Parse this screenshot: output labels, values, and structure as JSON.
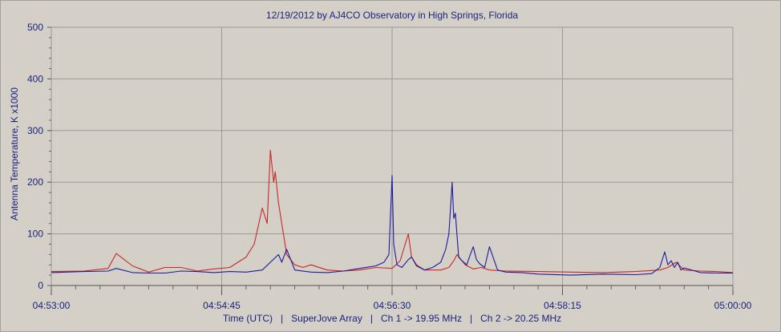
{
  "chart_data": {
    "type": "line",
    "title": "12/19/2012  by  AJ4CO Observatory  in  High Springs, Florida",
    "ylabel": "Antenna Temperature, K x1000",
    "xlabel": "Time (UTC)   |   SuperJove Array   |   Ch 1 -> 19.95 MHz   |   Ch 2 -> 20.25 MHz",
    "x_ticks": [
      "04:53:00",
      "04:54:45",
      "04:56:30",
      "04:58:15",
      "05:00:00"
    ],
    "xlim": [
      "04:53:00",
      "05:00:00"
    ],
    "y_ticks": [
      0,
      100,
      200,
      300,
      400,
      500
    ],
    "ylim": [
      0,
      500
    ],
    "grid": true,
    "colors": {
      "ch1": "#1c1c9e",
      "ch2": "#c82828",
      "background": "#d4d0c8",
      "grid": "#9a9a9a",
      "text": "#1a237e"
    },
    "series": [
      {
        "name": "Ch 1 -> 19.95 MHz",
        "x": [
          "04:53:00",
          "04:53:20",
          "04:53:35",
          "04:53:40",
          "04:53:50",
          "04:54:00",
          "04:54:10",
          "04:54:20",
          "04:54:30",
          "04:54:40",
          "04:54:50",
          "04:55:00",
          "04:55:10",
          "04:55:20",
          "04:55:22",
          "04:55:25",
          "04:55:30",
          "04:55:40",
          "04:55:50",
          "04:56:00",
          "04:56:10",
          "04:56:20",
          "04:56:25",
          "04:56:28",
          "04:56:30",
          "04:56:31",
          "04:56:33",
          "04:56:36",
          "04:56:40",
          "04:56:42",
          "04:56:45",
          "04:56:50",
          "04:56:55",
          "04:57:00",
          "04:57:03",
          "04:57:05",
          "04:57:07",
          "04:57:08",
          "04:57:09",
          "04:57:11",
          "04:57:13",
          "04:57:16",
          "04:57:18",
          "04:57:20",
          "04:57:22",
          "04:57:24",
          "04:57:27",
          "04:57:30",
          "04:57:35",
          "04:57:40",
          "04:57:50",
          "04:58:00",
          "04:58:20",
          "04:58:40",
          "04:59:00",
          "04:59:10",
          "04:59:15",
          "04:59:18",
          "04:59:20",
          "04:59:22",
          "04:59:24",
          "04:59:26",
          "04:59:28",
          "04:59:30",
          "04:59:40",
          "04:59:50",
          "05:00:00"
        ],
        "values": [
          25,
          27,
          28,
          33,
          25,
          24,
          24,
          28,
          27,
          25,
          27,
          26,
          30,
          60,
          45,
          70,
          30,
          26,
          25,
          28,
          33,
          38,
          45,
          60,
          213,
          80,
          40,
          35,
          50,
          55,
          38,
          30,
          35,
          45,
          70,
          100,
          200,
          130,
          140,
          55,
          48,
          40,
          58,
          75,
          50,
          42,
          35,
          75,
          30,
          26,
          25,
          22,
          20,
          22,
          21,
          23,
          35,
          65,
          40,
          48,
          35,
          45,
          30,
          34,
          25,
          24,
          24
        ]
      },
      {
        "name": "Ch 2 -> 20.25 MHz",
        "x": [
          "04:53:00",
          "04:53:20",
          "04:53:35",
          "04:53:40",
          "04:53:45",
          "04:53:50",
          "04:54:00",
          "04:54:10",
          "04:54:20",
          "04:54:30",
          "04:54:40",
          "04:54:50",
          "04:55:00",
          "04:55:05",
          "04:55:10",
          "04:55:13",
          "04:55:15",
          "04:55:17",
          "04:55:18",
          "04:55:20",
          "04:55:22",
          "04:55:25",
          "04:55:30",
          "04:55:35",
          "04:55:40",
          "04:55:50",
          "04:56:00",
          "04:56:10",
          "04:56:20",
          "04:56:30",
          "04:56:35",
          "04:56:40",
          "04:56:42",
          "04:56:45",
          "04:56:50",
          "04:57:00",
          "04:57:05",
          "04:57:08",
          "04:57:10",
          "04:57:15",
          "04:57:20",
          "04:57:25",
          "04:57:30",
          "04:57:40",
          "04:58:00",
          "04:58:20",
          "04:58:40",
          "04:59:00",
          "04:59:15",
          "04:59:20",
          "04:59:25",
          "04:59:30",
          "04:59:40",
          "04:59:50",
          "05:00:00"
        ],
        "values": [
          27,
          28,
          33,
          62,
          50,
          38,
          26,
          35,
          35,
          28,
          32,
          35,
          55,
          80,
          150,
          120,
          262,
          200,
          220,
          160,
          120,
          60,
          40,
          35,
          40,
          30,
          28,
          30,
          35,
          33,
          48,
          100,
          55,
          40,
          30,
          30,
          35,
          48,
          60,
          40,
          32,
          35,
          30,
          28,
          27,
          26,
          25,
          27,
          30,
          35,
          45,
          30,
          28,
          27,
          25
        ]
      }
    ]
  }
}
